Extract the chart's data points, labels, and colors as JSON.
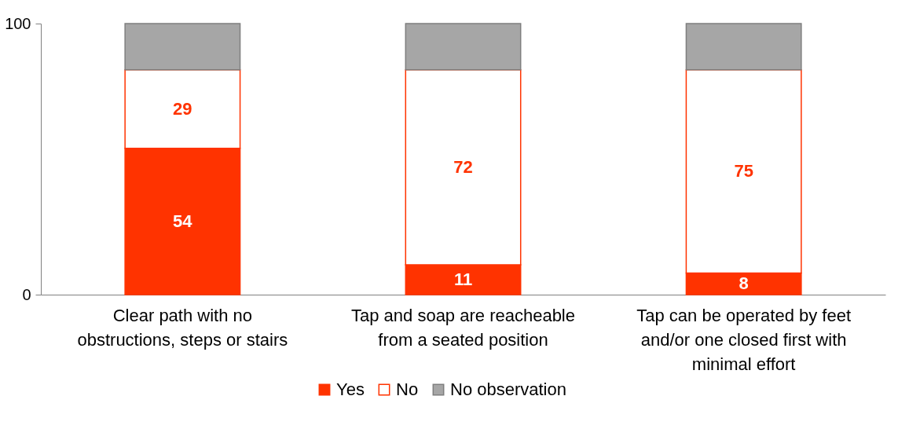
{
  "chart_data": {
    "type": "bar",
    "stacked": true,
    "categories": [
      "Clear path with no obstructions, steps or stairs",
      "Tap and soap are reacheable from a seated position",
      "Tap can be operated by feet and/or one closed first with minimal effort"
    ],
    "series": [
      {
        "name": "Yes",
        "color": "#ff3300",
        "values": [
          54,
          11,
          8
        ],
        "value_labels": [
          "54",
          "11",
          "8"
        ]
      },
      {
        "name": "No",
        "color": "#ffffff",
        "values": [
          29,
          72,
          75
        ],
        "value_labels": [
          "29",
          "72",
          "75"
        ]
      },
      {
        "name": "No observation",
        "color": "#a6a6a6",
        "values": [
          17,
          17,
          17
        ]
      }
    ],
    "ylim": [
      0,
      100
    ],
    "yticks": [
      0,
      100
    ],
    "grid": false,
    "legend": "bottom"
  }
}
